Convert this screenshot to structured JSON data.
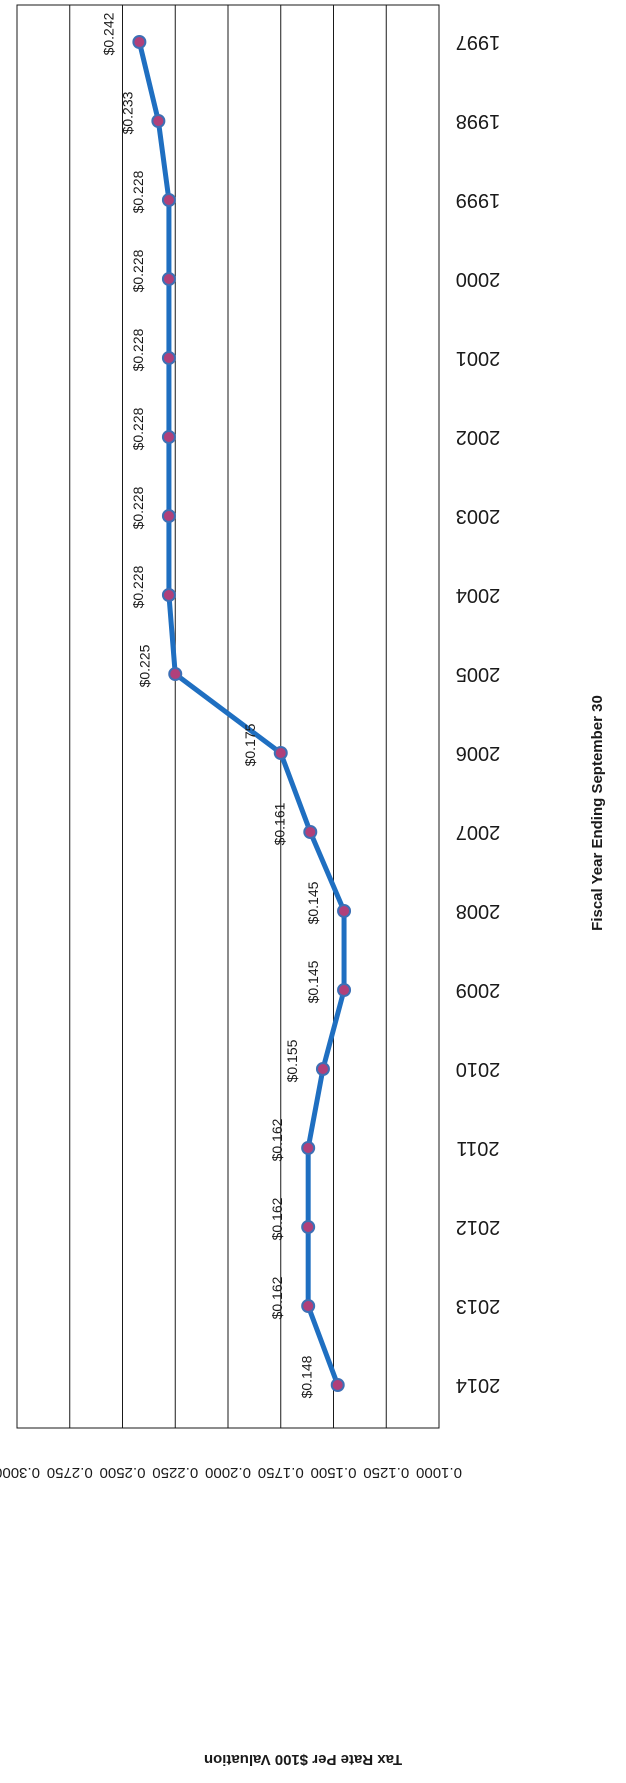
{
  "chart_data": {
    "type": "line",
    "orientation": "rotated 90 degrees clockwise (categories run top to bottom, values increase right to left)",
    "xlabel": "Fiscal Year Ending September 30",
    "ylabel": "Tax Rate Per $100 Valuation",
    "ylim": [
      0.1,
      0.3
    ],
    "y_ticks": [
      "0.3000",
      "0.2750",
      "0.2500",
      "0.2250",
      "0.2000",
      "0.1750",
      "0.1500",
      "0.1250",
      "0.1000"
    ],
    "grid": true,
    "legend": "none",
    "categories": [
      "1997",
      "1998",
      "1999",
      "2000",
      "2001",
      "2002",
      "2003",
      "2004",
      "2005",
      "2006",
      "2007",
      "2008",
      "2009",
      "2010",
      "2011",
      "2012",
      "2013",
      "2014"
    ],
    "series": [
      {
        "values": [
          0.242,
          0.233,
          0.228,
          0.228,
          0.228,
          0.228,
          0.228,
          0.228,
          0.225,
          0.175,
          0.161,
          0.145,
          0.145,
          0.155,
          0.162,
          0.162,
          0.162,
          0.148
        ]
      }
    ],
    "data_labels": [
      "$0.242",
      "$0.233",
      "$0.228",
      "$0.228",
      "$0.228",
      "$0.228",
      "$0.228",
      "$0.228",
      "$0.225",
      "$0.175",
      "$0.161",
      "$0.145",
      "$0.145",
      "$0.155",
      "$0.162",
      "$0.162",
      "$0.162",
      "$0.148"
    ],
    "colors": {
      "line": "#1f6fc1",
      "marker": "#b0407a",
      "marker_stroke": "#3d6fb5",
      "grid": "#1a1a1a",
      "text": "#1a1a1a"
    }
  }
}
